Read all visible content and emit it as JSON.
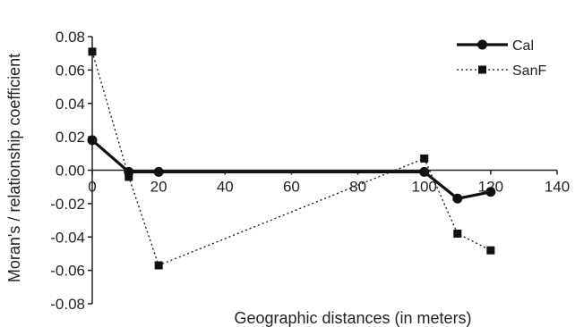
{
  "chart_data": {
    "type": "line",
    "title": "",
    "xlabel": "Geographic distances (in meters)",
    "ylabel": "Moran's / relationship coefficient",
    "xlim": [
      0,
      140
    ],
    "ylim": [
      -0.08,
      0.08
    ],
    "x_ticks": [
      "0",
      "20",
      "40",
      "60",
      "80",
      "100",
      "120",
      "140"
    ],
    "y_ticks": [
      "0.08",
      "0.06",
      "0.04",
      "0.02",
      "0.00",
      "-0.02",
      "-0.04",
      "-0.06",
      "-0.08"
    ],
    "grid": false,
    "legend_position": "top-right",
    "series": [
      {
        "name": "Cal",
        "style": "solid",
        "marker": "circle",
        "color": "#111111",
        "x": [
          0,
          11,
          20,
          100,
          110,
          120
        ],
        "y": [
          0.018,
          -0.001,
          -0.001,
          -0.001,
          -0.017,
          -0.013
        ]
      },
      {
        "name": "SanF",
        "style": "dotted",
        "marker": "square",
        "color": "#111111",
        "x": [
          0,
          11,
          20,
          100,
          110,
          120
        ],
        "y": [
          0.071,
          -0.004,
          -0.057,
          0.007,
          -0.038,
          -0.048
        ]
      }
    ]
  }
}
